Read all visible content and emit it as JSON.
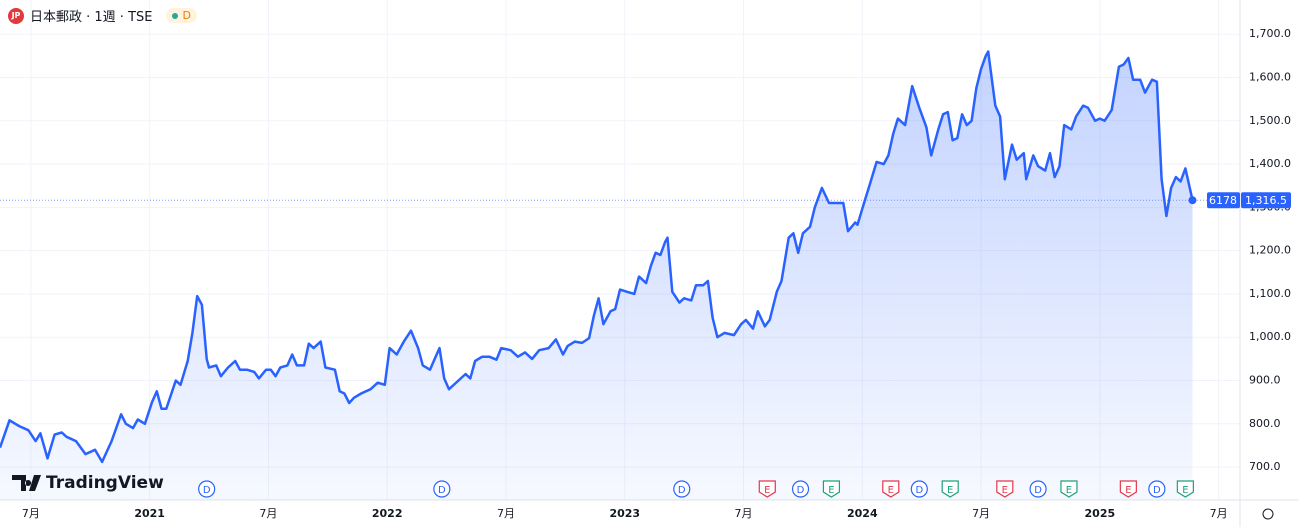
{
  "header": {
    "symbol": "日本郵政 · 1週 · TSE",
    "badge": "D"
  },
  "chart_data": {
    "type": "area",
    "watermark": "TradingView",
    "color": "#2962ff",
    "grid": true,
    "symbol_code": "6178",
    "price_label": "1,316.5",
    "xlim": [
      2020.37,
      2025.59
    ],
    "ylim": [
      624,
      1779
    ],
    "xticks": [
      {
        "value": 2020.5,
        "label": "7月"
      },
      2021,
      {
        "value": 2021.5,
        "label": "7月"
      },
      2022,
      {
        "value": 2022.5,
        "label": "7月"
      },
      2023,
      {
        "value": 2023.5,
        "label": "7月"
      },
      2024,
      {
        "value": 2024.5,
        "label": "7月"
      },
      2025,
      {
        "value": 2025.5,
        "label": "7月"
      }
    ],
    "yticks": [
      {
        "value": 700,
        "label": "700.0"
      },
      {
        "value": 800,
        "label": "800.0"
      },
      {
        "value": 900,
        "label": "900.0"
      },
      {
        "value": 1000,
        "label": "1,000.0"
      },
      {
        "value": 1100,
        "label": "1,100.0"
      },
      {
        "value": 1200,
        "label": "1,200.0"
      },
      {
        "value": 1300,
        "label": "1,300.0"
      },
      {
        "value": 1400,
        "label": "1,400.0"
      },
      {
        "value": 1500,
        "label": "1,500.0"
      },
      {
        "value": 1600,
        "label": "1,600.0"
      },
      {
        "value": 1700,
        "label": "1,700.0"
      }
    ],
    "x": [
      2020.37,
      2020.41,
      2020.45,
      2020.49,
      2020.52,
      2020.54,
      2020.57,
      2020.6,
      2020.63,
      2020.65,
      2020.69,
      2020.73,
      2020.77,
      2020.8,
      2020.84,
      2020.88,
      2020.9,
      2020.93,
      2020.95,
      2020.98,
      2021.01,
      2021.03,
      2021.05,
      2021.07,
      2021.11,
      2021.13,
      2021.16,
      2021.18,
      2021.2,
      2021.22,
      2021.24,
      2021.25,
      2021.28,
      2021.3,
      2021.33,
      2021.36,
      2021.38,
      2021.41,
      2021.44,
      2021.46,
      2021.49,
      2021.51,
      2021.53,
      2021.55,
      2021.58,
      2021.6,
      2021.62,
      2021.65,
      2021.67,
      2021.69,
      2021.72,
      2021.74,
      2021.78,
      2021.8,
      2021.82,
      2021.84,
      2021.86,
      2021.89,
      2021.93,
      2021.96,
      2021.99,
      2022.01,
      2022.04,
      2022.07,
      2022.1,
      2022.13,
      2022.15,
      2022.18,
      2022.2,
      2022.22,
      2022.24,
      2022.26,
      2022.3,
      2022.33,
      2022.35,
      2022.37,
      2022.4,
      2022.43,
      2022.46,
      2022.48,
      2022.52,
      2022.55,
      2022.58,
      2022.61,
      2022.64,
      2022.68,
      2022.71,
      2022.74,
      2022.76,
      2022.79,
      2022.82,
      2022.85,
      2022.87,
      2022.89,
      2022.91,
      2022.94,
      2022.96,
      2022.98,
      2023.01,
      2023.04,
      2023.06,
      2023.09,
      2023.11,
      2023.13,
      2023.15,
      2023.17,
      2023.18,
      2023.2,
      2023.23,
      2023.25,
      2023.28,
      2023.3,
      2023.33,
      2023.35,
      2023.37,
      2023.39,
      2023.42,
      2023.46,
      2023.49,
      2023.51,
      2023.54,
      2023.56,
      2023.59,
      2023.61,
      2023.64,
      2023.66,
      2023.69,
      2023.71,
      2023.73,
      2023.75,
      2023.78,
      2023.8,
      2023.83,
      2023.86,
      2023.89,
      2023.92,
      2023.94,
      2023.97,
      2023.98,
      2024.01,
      2024.03,
      2024.06,
      2024.09,
      2024.11,
      2024.13,
      2024.15,
      2024.18,
      2024.21,
      2024.24,
      2024.27,
      2024.29,
      2024.32,
      2024.34,
      2024.36,
      2024.38,
      2024.4,
      2024.42,
      2024.44,
      2024.46,
      2024.48,
      2024.5,
      2024.52,
      2024.53,
      2024.56,
      2024.58,
      2024.6,
      2024.63,
      2024.65,
      2024.68,
      2024.69,
      2024.72,
      2024.74,
      2024.77,
      2024.79,
      2024.81,
      2024.83,
      2024.85,
      2024.88,
      2024.9,
      2024.93,
      2024.95,
      2024.98,
      2025.0,
      2025.02,
      2025.05,
      2025.08,
      2025.1,
      2025.12,
      2025.14,
      2025.17,
      2025.19,
      2025.22,
      2025.24,
      2025.26,
      2025.28,
      2025.3,
      2025.32,
      2025.34,
      2025.36,
      2025.39
    ],
    "values": [
      745,
      808,
      795,
      785,
      760,
      778,
      720,
      775,
      780,
      770,
      760,
      730,
      740,
      712,
      760,
      822,
      800,
      790,
      810,
      800,
      850,
      875,
      835,
      835,
      900,
      890,
      945,
      1010,
      1095,
      1075,
      950,
      930,
      935,
      910,
      930,
      945,
      925,
      925,
      920,
      905,
      925,
      925,
      910,
      930,
      935,
      960,
      935,
      935,
      985,
      975,
      990,
      930,
      925,
      875,
      870,
      848,
      860,
      870,
      880,
      895,
      890,
      975,
      960,
      990,
      1015,
      975,
      935,
      925,
      950,
      975,
      905,
      880,
      900,
      915,
      905,
      945,
      955,
      955,
      948,
      975,
      970,
      955,
      965,
      950,
      970,
      975,
      995,
      960,
      980,
      990,
      987,
      998,
      1050,
      1090,
      1030,
      1060,
      1065,
      1110,
      1105,
      1100,
      1140,
      1125,
      1165,
      1195,
      1190,
      1220,
      1230,
      1105,
      1080,
      1090,
      1085,
      1120,
      1120,
      1130,
      1045,
      1000,
      1010,
      1005,
      1030,
      1040,
      1020,
      1060,
      1025,
      1040,
      1105,
      1130,
      1230,
      1240,
      1195,
      1240,
      1255,
      1300,
      1345,
      1310,
      1310,
      1310,
      1245,
      1265,
      1260,
      1315,
      1350,
      1405,
      1400,
      1420,
      1470,
      1505,
      1490,
      1580,
      1530,
      1485,
      1420,
      1480,
      1515,
      1520,
      1455,
      1460,
      1515,
      1490,
      1500,
      1575,
      1620,
      1650,
      1660,
      1535,
      1510,
      1365,
      1445,
      1410,
      1425,
      1365,
      1420,
      1395,
      1385,
      1425,
      1370,
      1395,
      1490,
      1480,
      1510,
      1535,
      1530,
      1500,
      1505,
      1500,
      1525,
      1625,
      1630,
      1645,
      1595,
      1595,
      1565,
      1595,
      1590,
      1365,
      1280,
      1345,
      1370,
      1360,
      1390,
      1316.5
    ],
    "markers": [
      {
        "label": "D",
        "x": 2021.24,
        "color": "#2962ff"
      },
      {
        "label": "D",
        "x": 2022.23,
        "color": "#2962ff"
      },
      {
        "label": "D",
        "x": 2023.24,
        "color": "#2962ff"
      },
      {
        "label": "E",
        "x": 2023.6,
        "color": "#e5374a"
      },
      {
        "label": "D",
        "x": 2023.74,
        "color": "#2962ff"
      },
      {
        "label": "E",
        "x": 2023.87,
        "color": "#22a07a"
      },
      {
        "label": "E",
        "x": 2024.12,
        "color": "#e5374a"
      },
      {
        "label": "D",
        "x": 2024.24,
        "color": "#2962ff"
      },
      {
        "label": "E",
        "x": 2024.37,
        "color": "#22a07a"
      },
      {
        "label": "E",
        "x": 2024.6,
        "color": "#e5374a"
      },
      {
        "label": "D",
        "x": 2024.74,
        "color": "#2962ff"
      },
      {
        "label": "E",
        "x": 2024.87,
        "color": "#22a07a"
      },
      {
        "label": "E",
        "x": 2025.12,
        "color": "#e5374a"
      },
      {
        "label": "D",
        "x": 2025.24,
        "color": "#2962ff"
      },
      {
        "label": "E",
        "x": 2025.36,
        "color": "#22a07a"
      }
    ]
  }
}
